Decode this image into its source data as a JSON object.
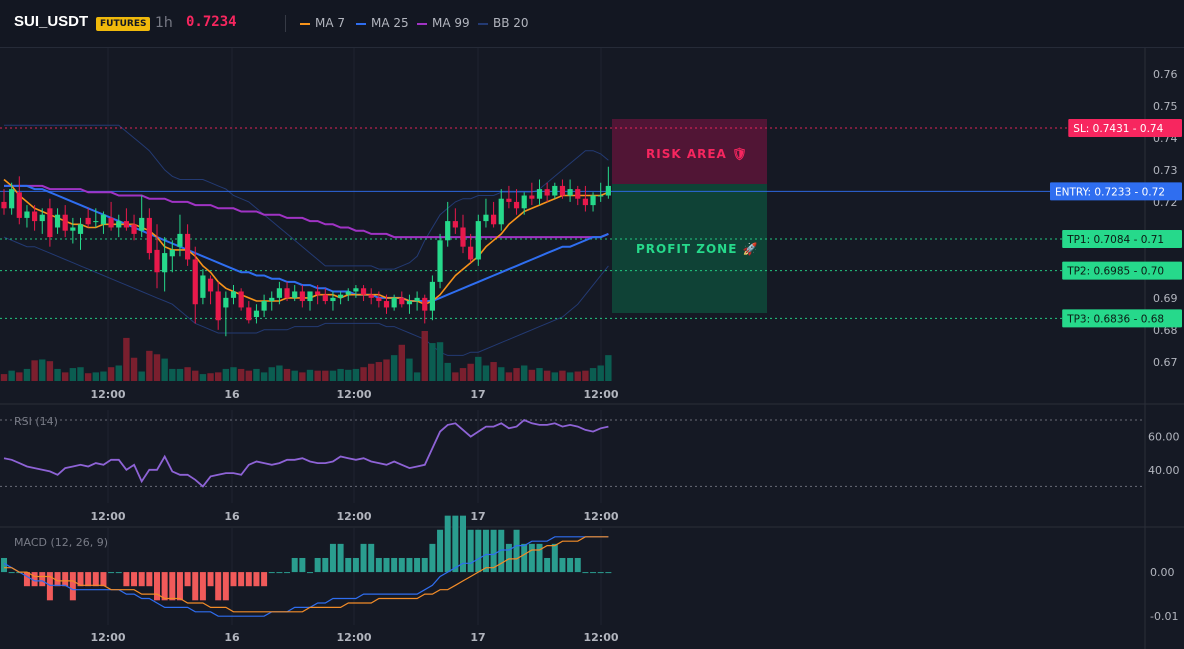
{
  "header": {
    "symbol": "SUI_USDT",
    "badge": "FUTURES",
    "timeframe": "1h",
    "price": "0.7234",
    "price_color": "#f7265f"
  },
  "legend": [
    {
      "label": "MA 7",
      "color": "#f7931a"
    },
    {
      "label": "MA 25",
      "color": "#2f6ef0"
    },
    {
      "label": "MA 99",
      "color": "#a033c4"
    },
    {
      "label": "BB 20",
      "color": "#233a73"
    }
  ],
  "colors": {
    "up": "#26d98b",
    "down": "#e8194b",
    "vol_up": "#0b5d51",
    "vol_down": "#7a1f2e",
    "rsi": "#8e63d6",
    "macd": "#2f6ef0",
    "signal": "#f28c28",
    "hist_pos": "#2a9d8f",
    "hist_neg": "#f05a5a"
  },
  "price_axis": {
    "ticks": [
      "0.76",
      "0.75",
      "0.74",
      "0.73",
      "0.72",
      "0.69",
      "0.68",
      "0.67"
    ],
    "range": [
      0.664,
      0.765
    ]
  },
  "time_axis": {
    "labels": [
      "12:00",
      "16",
      "12:00",
      "17",
      "12:00"
    ]
  },
  "levels": [
    {
      "key": "sl",
      "label": "SL: 0.7431",
      "axis_value": "0.74",
      "price": 0.7431,
      "color": "#f7265f",
      "text_color": "#ffffff"
    },
    {
      "key": "entry",
      "label": "ENTRY: 0.7233",
      "axis_value": "0.72",
      "price": 0.7233,
      "color": "#2f6ef0",
      "text_color": "#ffffff"
    },
    {
      "key": "tp1",
      "label": "TP1: 0.7084",
      "axis_value": "0.71",
      "price": 0.7084,
      "color": "#26d98b",
      "text_color": "#0c1a14"
    },
    {
      "key": "tp2",
      "label": "TP2: 0.6985",
      "axis_value": "0.70",
      "price": 0.6985,
      "color": "#26d98b",
      "text_color": "#0c1a14"
    },
    {
      "key": "tp3",
      "label": "TP3: 0.6836",
      "axis_value": "0.68",
      "price": 0.6836,
      "color": "#26d98b",
      "text_color": "#0c1a14"
    }
  ],
  "zones": {
    "risk": "RISK AREA 🛡",
    "profit": "PROFIT ZONE 🚀"
  },
  "rsi": {
    "label": "RSI (14)",
    "ticks": [
      "60.00",
      "40.00"
    ],
    "range": [
      20,
      76
    ]
  },
  "macd": {
    "label": "MACD (12, 26, 9)",
    "ticks": [
      "0.00",
      "-0.01"
    ],
    "range": [
      -0.012,
      0.01
    ]
  },
  "chart_data": {
    "type": "candlestick",
    "candles": [
      [
        0.72,
        0.724,
        0.716,
        0.718
      ],
      [
        0.718,
        0.726,
        0.716,
        0.724
      ],
      [
        0.723,
        0.728,
        0.713,
        0.715
      ],
      [
        0.715,
        0.719,
        0.712,
        0.717
      ],
      [
        0.717,
        0.719,
        0.711,
        0.714
      ],
      [
        0.714,
        0.718,
        0.71,
        0.716
      ],
      [
        0.718,
        0.721,
        0.706,
        0.709
      ],
      [
        0.712,
        0.718,
        0.71,
        0.716
      ],
      [
        0.716,
        0.719,
        0.709,
        0.711
      ],
      [
        0.711,
        0.715,
        0.707,
        0.712
      ],
      [
        0.71,
        0.715,
        0.705,
        0.713
      ],
      [
        0.715,
        0.718,
        0.712,
        0.713
      ],
      [
        0.714,
        0.718,
        0.712,
        0.714
      ],
      [
        0.713,
        0.717,
        0.71,
        0.716
      ],
      [
        0.715,
        0.72,
        0.711,
        0.712
      ],
      [
        0.712,
        0.716,
        0.709,
        0.714
      ],
      [
        0.714,
        0.718,
        0.711,
        0.712
      ],
      [
        0.713,
        0.716,
        0.708,
        0.71
      ],
      [
        0.711,
        0.722,
        0.709,
        0.715
      ],
      [
        0.715,
        0.718,
        0.702,
        0.704
      ],
      [
        0.705,
        0.713,
        0.693,
        0.698
      ],
      [
        0.698,
        0.709,
        0.692,
        0.704
      ],
      [
        0.703,
        0.708,
        0.698,
        0.705
      ],
      [
        0.706,
        0.716,
        0.703,
        0.71
      ],
      [
        0.71,
        0.713,
        0.7,
        0.702
      ],
      [
        0.702,
        0.706,
        0.682,
        0.688
      ],
      [
        0.69,
        0.699,
        0.688,
        0.697
      ],
      [
        0.696,
        0.697,
        0.688,
        0.692
      ],
      [
        0.692,
        0.695,
        0.68,
        0.683
      ],
      [
        0.687,
        0.692,
        0.678,
        0.69
      ],
      [
        0.69,
        0.694,
        0.688,
        0.692
      ],
      [
        0.692,
        0.693,
        0.686,
        0.687
      ],
      [
        0.687,
        0.689,
        0.682,
        0.683
      ],
      [
        0.684,
        0.688,
        0.682,
        0.686
      ],
      [
        0.686,
        0.691,
        0.684,
        0.689
      ],
      [
        0.689,
        0.692,
        0.686,
        0.69
      ],
      [
        0.69,
        0.695,
        0.688,
        0.693
      ],
      [
        0.693,
        0.695,
        0.689,
        0.69
      ],
      [
        0.69,
        0.694,
        0.689,
        0.692
      ],
      [
        0.692,
        0.694,
        0.687,
        0.689
      ],
      [
        0.689,
        0.692,
        0.686,
        0.692
      ],
      [
        0.692,
        0.694,
        0.688,
        0.691
      ],
      [
        0.691,
        0.693,
        0.688,
        0.689
      ],
      [
        0.689,
        0.692,
        0.686,
        0.69
      ],
      [
        0.69,
        0.692,
        0.688,
        0.691
      ],
      [
        0.691,
        0.693,
        0.689,
        0.692
      ],
      [
        0.692,
        0.694,
        0.69,
        0.693
      ],
      [
        0.693,
        0.694,
        0.689,
        0.691
      ],
      [
        0.691,
        0.693,
        0.688,
        0.69
      ],
      [
        0.69,
        0.692,
        0.687,
        0.689
      ],
      [
        0.689,
        0.691,
        0.685,
        0.687
      ],
      [
        0.687,
        0.691,
        0.686,
        0.69
      ],
      [
        0.69,
        0.692,
        0.687,
        0.688
      ],
      [
        0.688,
        0.691,
        0.685,
        0.689
      ],
      [
        0.689,
        0.692,
        0.686,
        0.69
      ],
      [
        0.69,
        0.691,
        0.682,
        0.686
      ],
      [
        0.686,
        0.697,
        0.683,
        0.695
      ],
      [
        0.695,
        0.71,
        0.693,
        0.708
      ],
      [
        0.708,
        0.72,
        0.706,
        0.714
      ],
      [
        0.714,
        0.718,
        0.71,
        0.712
      ],
      [
        0.712,
        0.716,
        0.704,
        0.706
      ],
      [
        0.706,
        0.71,
        0.701,
        0.702
      ],
      [
        0.702,
        0.716,
        0.7,
        0.714
      ],
      [
        0.714,
        0.721,
        0.712,
        0.716
      ],
      [
        0.716,
        0.72,
        0.712,
        0.713
      ],
      [
        0.713,
        0.724,
        0.711,
        0.721
      ],
      [
        0.721,
        0.725,
        0.718,
        0.72
      ],
      [
        0.72,
        0.724,
        0.716,
        0.718
      ],
      [
        0.718,
        0.723,
        0.716,
        0.722
      ],
      [
        0.722,
        0.726,
        0.719,
        0.721
      ],
      [
        0.721,
        0.727,
        0.719,
        0.724
      ],
      [
        0.724,
        0.726,
        0.72,
        0.722
      ],
      [
        0.722,
        0.726,
        0.721,
        0.725
      ],
      [
        0.725,
        0.727,
        0.721,
        0.722
      ],
      [
        0.722,
        0.727,
        0.72,
        0.724
      ],
      [
        0.724,
        0.725,
        0.719,
        0.721
      ],
      [
        0.721,
        0.725,
        0.717,
        0.719
      ],
      [
        0.719,
        0.723,
        0.717,
        0.722
      ],
      [
        0.722,
        0.726,
        0.72,
        0.722
      ],
      [
        0.722,
        0.731,
        0.721,
        0.725
      ]
    ],
    "volume": [
      8,
      12,
      10,
      14,
      24,
      25,
      23,
      14,
      10,
      15,
      16,
      9,
      10,
      11,
      16,
      18,
      50,
      27,
      11,
      35,
      31,
      26,
      14,
      14,
      16,
      12,
      8,
      9,
      10,
      14,
      16,
      14,
      12,
      14,
      10,
      16,
      18,
      14,
      12,
      10,
      13,
      12,
      12,
      12,
      14,
      13,
      14,
      16,
      20,
      22,
      25,
      30,
      42,
      26,
      10,
      58,
      44,
      45,
      21,
      10,
      15,
      20,
      28,
      18,
      22,
      16,
      10,
      15,
      18,
      13,
      15,
      12,
      10,
      12,
      10,
      11,
      12,
      15,
      18,
      30
    ],
    "ma7": [
      0.727,
      0.725,
      0.722,
      0.72,
      0.718,
      0.717,
      0.716,
      0.715,
      0.714,
      0.713,
      0.713,
      0.712,
      0.712,
      0.713,
      0.713,
      0.713,
      0.713,
      0.713,
      0.712,
      0.711,
      0.709,
      0.706,
      0.705,
      0.705,
      0.705,
      0.703,
      0.7,
      0.698,
      0.695,
      0.693,
      0.692,
      0.691,
      0.69,
      0.689,
      0.689,
      0.689,
      0.689,
      0.69,
      0.69,
      0.69,
      0.69,
      0.691,
      0.691,
      0.691,
      0.69,
      0.691,
      0.691,
      0.691,
      0.691,
      0.691,
      0.69,
      0.69,
      0.69,
      0.689,
      0.689,
      0.688,
      0.689,
      0.691,
      0.694,
      0.697,
      0.699,
      0.701,
      0.703,
      0.706,
      0.708,
      0.71,
      0.713,
      0.715,
      0.717,
      0.718,
      0.719,
      0.72,
      0.721,
      0.722,
      0.722,
      0.722,
      0.722,
      0.722,
      0.722,
      0.723
    ],
    "ma25": [
      0.725,
      0.725,
      0.725,
      0.725,
      0.724,
      0.724,
      0.723,
      0.722,
      0.721,
      0.72,
      0.719,
      0.718,
      0.717,
      0.716,
      0.715,
      0.714,
      0.713,
      0.712,
      0.711,
      0.71,
      0.709,
      0.708,
      0.707,
      0.706,
      0.705,
      0.704,
      0.703,
      0.702,
      0.701,
      0.7,
      0.699,
      0.698,
      0.698,
      0.697,
      0.697,
      0.696,
      0.696,
      0.695,
      0.695,
      0.694,
      0.694,
      0.693,
      0.693,
      0.692,
      0.692,
      0.692,
      0.691,
      0.691,
      0.691,
      0.69,
      0.69,
      0.69,
      0.69,
      0.689,
      0.689,
      0.689,
      0.689,
      0.69,
      0.691,
      0.692,
      0.693,
      0.694,
      0.695,
      0.696,
      0.697,
      0.698,
      0.699,
      0.7,
      0.701,
      0.702,
      0.703,
      0.704,
      0.705,
      0.706,
      0.706,
      0.707,
      0.708,
      0.709,
      0.709,
      0.71
    ],
    "ma99": [
      0.725,
      0.725,
      0.725,
      0.725,
      0.725,
      0.725,
      0.724,
      0.724,
      0.724,
      0.724,
      0.724,
      0.723,
      0.723,
      0.723,
      0.723,
      0.722,
      0.722,
      0.722,
      0.722,
      0.721,
      0.721,
      0.721,
      0.72,
      0.72,
      0.72,
      0.719,
      0.719,
      0.719,
      0.718,
      0.718,
      0.718,
      0.717,
      0.717,
      0.717,
      0.716,
      0.716,
      0.716,
      0.715,
      0.715,
      0.715,
      0.714,
      0.714,
      0.713,
      0.713,
      0.712,
      0.712,
      0.711,
      0.711,
      0.71,
      0.71,
      0.71,
      0.709,
      0.709,
      0.709,
      0.709,
      0.709,
      0.709,
      0.709,
      0.709,
      0.709,
      0.709,
      0.709,
      0.709,
      0.709,
      0.709,
      0.709,
      0.709,
      0.709,
      0.709,
      0.709,
      0.709,
      0.709,
      0.709,
      0.709,
      0.709,
      0.709,
      0.709,
      0.709,
      0.709,
      0.71
    ],
    "bb_upper": [
      0.744,
      0.744,
      0.744,
      0.744,
      0.744,
      0.744,
      0.744,
      0.744,
      0.744,
      0.744,
      0.744,
      0.744,
      0.744,
      0.744,
      0.744,
      0.744,
      0.742,
      0.74,
      0.738,
      0.736,
      0.733,
      0.73,
      0.728,
      0.727,
      0.727,
      0.727,
      0.727,
      0.726,
      0.725,
      0.724,
      0.722,
      0.721,
      0.72,
      0.718,
      0.716,
      0.714,
      0.712,
      0.71,
      0.708,
      0.706,
      0.704,
      0.702,
      0.7,
      0.7,
      0.7,
      0.7,
      0.7,
      0.7,
      0.7,
      0.699,
      0.699,
      0.699,
      0.7,
      0.701,
      0.703,
      0.708,
      0.712,
      0.716,
      0.718,
      0.72,
      0.721,
      0.721,
      0.722,
      0.722,
      0.722,
      0.723,
      0.723,
      0.723,
      0.723,
      0.723,
      0.724,
      0.726,
      0.728,
      0.73,
      0.732,
      0.734,
      0.736,
      0.736,
      0.735,
      0.733
    ],
    "bb_lower": [
      0.709,
      0.708,
      0.707,
      0.706,
      0.706,
      0.705,
      0.704,
      0.703,
      0.702,
      0.701,
      0.7,
      0.699,
      0.698,
      0.697,
      0.696,
      0.695,
      0.694,
      0.693,
      0.692,
      0.691,
      0.69,
      0.689,
      0.688,
      0.686,
      0.684,
      0.682,
      0.681,
      0.68,
      0.679,
      0.679,
      0.679,
      0.679,
      0.679,
      0.679,
      0.68,
      0.68,
      0.68,
      0.68,
      0.681,
      0.681,
      0.681,
      0.681,
      0.682,
      0.682,
      0.682,
      0.682,
      0.682,
      0.682,
      0.682,
      0.682,
      0.681,
      0.681,
      0.68,
      0.679,
      0.678,
      0.677,
      0.675,
      0.673,
      0.672,
      0.672,
      0.672,
      0.673,
      0.673,
      0.674,
      0.675,
      0.676,
      0.677,
      0.678,
      0.679,
      0.68,
      0.681,
      0.682,
      0.683,
      0.684,
      0.686,
      0.688,
      0.691,
      0.694,
      0.697,
      0.7
    ],
    "rsi": [
      47,
      46,
      44,
      42,
      41,
      40,
      39,
      37,
      41,
      42,
      43,
      42,
      44,
      43,
      46,
      46,
      40,
      43,
      33,
      40,
      40,
      48,
      39,
      37,
      37,
      34,
      30,
      36,
      37,
      38,
      38,
      37,
      43,
      45,
      44,
      43,
      44,
      46,
      46,
      47,
      45,
      44,
      44,
      45,
      48,
      47,
      46,
      47,
      45,
      44,
      43,
      45,
      43,
      41,
      42,
      43,
      53,
      63,
      67,
      68,
      64,
      60,
      63,
      66,
      66,
      68,
      65,
      66,
      70,
      68,
      67,
      67,
      68,
      66,
      67,
      66,
      64,
      63,
      65,
      66
    ],
    "macd": [
      0.002,
      0.001,
      0.0,
      -0.001,
      -0.002,
      -0.002,
      -0.003,
      -0.003,
      -0.003,
      -0.004,
      -0.004,
      -0.004,
      -0.004,
      -0.004,
      -0.004,
      -0.004,
      -0.005,
      -0.005,
      -0.006,
      -0.006,
      -0.007,
      -0.008,
      -0.008,
      -0.008,
      -0.008,
      -0.009,
      -0.009,
      -0.009,
      -0.01,
      -0.01,
      -0.01,
      -0.01,
      -0.01,
      -0.01,
      -0.01,
      -0.009,
      -0.009,
      -0.009,
      -0.008,
      -0.008,
      -0.008,
      -0.007,
      -0.007,
      -0.006,
      -0.006,
      -0.006,
      -0.006,
      -0.005,
      -0.005,
      -0.005,
      -0.005,
      -0.005,
      -0.005,
      -0.005,
      -0.005,
      -0.004,
      -0.003,
      -0.001,
      0.0,
      0.001,
      0.002,
      0.002,
      0.003,
      0.004,
      0.004,
      0.005,
      0.005,
      0.006,
      0.006,
      0.007,
      0.007,
      0.007,
      0.008,
      0.008,
      0.008,
      0.008,
      0.008,
      0.008,
      0.008,
      0.008
    ],
    "signal": [
      0.001,
      0.001,
      0.0,
      0.0,
      -0.001,
      -0.001,
      -0.001,
      -0.002,
      -0.002,
      -0.002,
      -0.003,
      -0.003,
      -0.003,
      -0.003,
      -0.004,
      -0.004,
      -0.004,
      -0.004,
      -0.005,
      -0.005,
      -0.005,
      -0.006,
      -0.006,
      -0.006,
      -0.007,
      -0.007,
      -0.007,
      -0.008,
      -0.008,
      -0.008,
      -0.009,
      -0.009,
      -0.009,
      -0.009,
      -0.009,
      -0.009,
      -0.009,
      -0.009,
      -0.009,
      -0.009,
      -0.008,
      -0.008,
      -0.008,
      -0.008,
      -0.008,
      -0.007,
      -0.007,
      -0.007,
      -0.007,
      -0.006,
      -0.006,
      -0.006,
      -0.006,
      -0.006,
      -0.006,
      -0.005,
      -0.005,
      -0.004,
      -0.004,
      -0.003,
      -0.002,
      -0.001,
      0.0,
      0.001,
      0.001,
      0.002,
      0.003,
      0.003,
      0.004,
      0.005,
      0.005,
      0.006,
      0.006,
      0.007,
      0.007,
      0.007,
      0.008,
      0.008,
      0.008,
      0.008
    ]
  }
}
